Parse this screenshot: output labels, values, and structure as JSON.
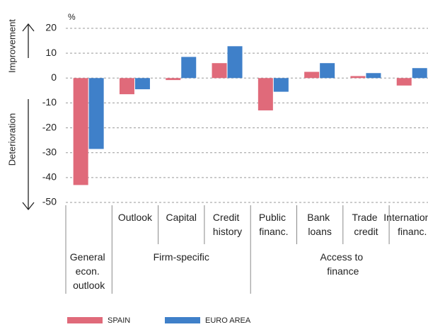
{
  "chart_data": {
    "type": "bar",
    "unit": "%",
    "side_labels": {
      "top": "Improvement",
      "bottom": "Deterioration"
    },
    "categories": [
      null,
      "Outlook",
      "Capital",
      "Credit history",
      "Public financ.",
      "Bank loans",
      "Trade credit",
      "International financ."
    ],
    "groups": [
      {
        "name": "General econ. outlook",
        "span": 1
      },
      {
        "name": "Firm-specific",
        "span": 3
      },
      {
        "name": "Access to finance",
        "span": 4
      }
    ],
    "series": [
      {
        "name": "SPAIN",
        "color": "#e06a7a",
        "values": [
          -43,
          -6.5,
          -0.8,
          6,
          -13,
          2.5,
          0.8,
          -3
        ]
      },
      {
        "name": "EURO AREA",
        "color": "#3f80c9",
        "values": [
          -28.5,
          -4.5,
          8.5,
          12.8,
          -5.5,
          6,
          2,
          4
        ]
      }
    ],
    "ylim": [
      -50,
      20
    ],
    "yticks": [
      -50,
      -40,
      -30,
      -20,
      -10,
      0,
      10,
      20
    ],
    "grid": true,
    "legend": "bottom"
  }
}
